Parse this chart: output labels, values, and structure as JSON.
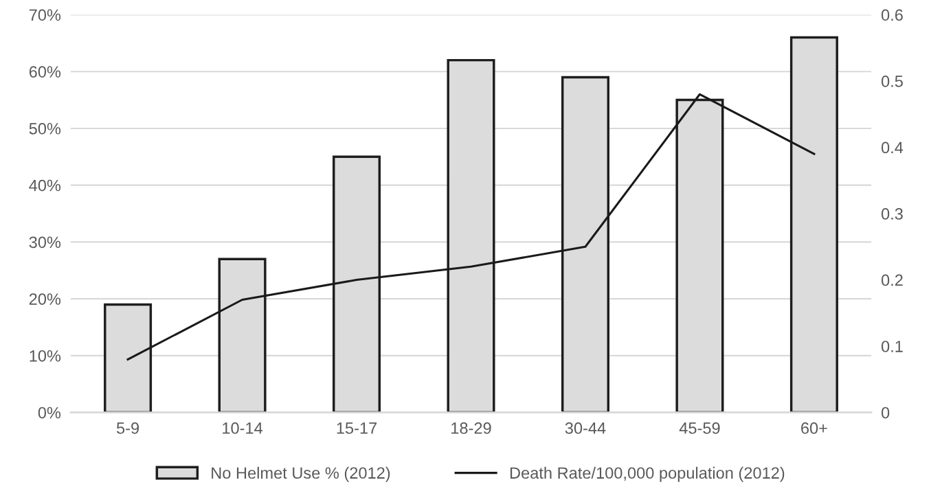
{
  "chart_data": {
    "type": "bar",
    "categories": [
      "5-9",
      "10-14",
      "15-17",
      "18-29",
      "30-44",
      "45-59",
      "60+"
    ],
    "series": [
      {
        "name": "No Helmet Use % (2012)",
        "color": "#dcdcdc",
        "values": [
          19,
          27,
          45,
          62,
          59,
          55,
          66
        ]
      },
      {
        "name": "Death Rate/100,000 population (2012)",
        "type": "line",
        "axis": "y2",
        "color": "#1a1a1a",
        "values": [
          0.08,
          0.17,
          0.2,
          0.22,
          0.25,
          0.48,
          0.39
        ]
      }
    ],
    "ylim": [
      0,
      70
    ],
    "yticks": [
      {
        "value": 0,
        "label": "0%"
      },
      {
        "value": 10,
        "label": "10%"
      },
      {
        "value": 20,
        "label": "20%"
      },
      {
        "value": 30,
        "label": "30%"
      },
      {
        "value": 40,
        "label": "40%"
      },
      {
        "value": 50,
        "label": "50%"
      },
      {
        "value": 60,
        "label": "60%"
      },
      {
        "value": 70,
        "label": "70%"
      }
    ],
    "y2lim": [
      0,
      0.6
    ],
    "y2ticks": [
      0,
      0.1,
      0.2,
      0.3,
      0.4,
      0.5,
      0.6
    ],
    "grid": "y",
    "legend": "bottom",
    "marker": "none",
    "line_style": "solid"
  }
}
